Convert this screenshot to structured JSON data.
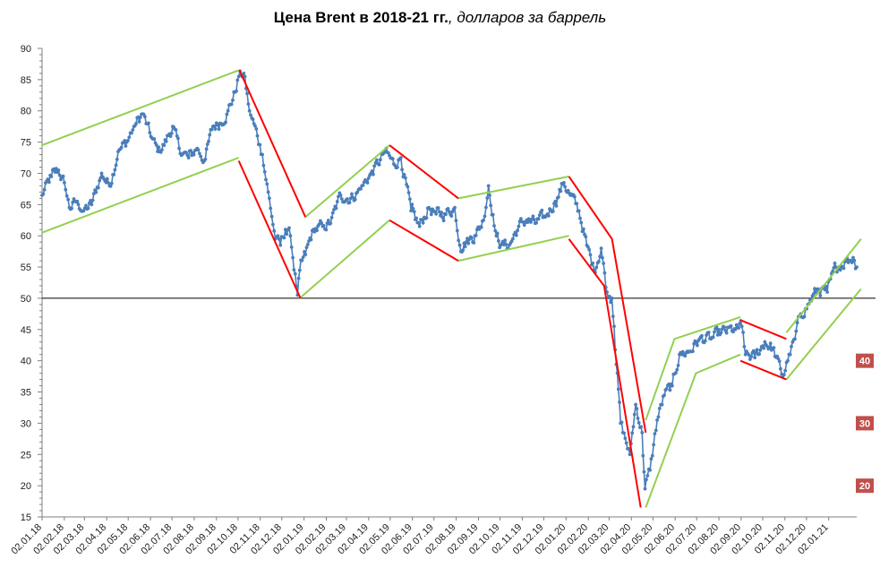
{
  "title": {
    "bold_part": "Цена Brent в 2018-21 гг.",
    "italic_part": ", долларов за баррель"
  },
  "colors": {
    "series": "#4a7ebb",
    "up_channel": "#92d050",
    "down_channel": "#ff0000",
    "reference_line": "#000000",
    "badge": "#c0504d"
  },
  "chart_data": {
    "type": "line",
    "title": "Цена Brent в 2018-21 гг., долларов за баррель",
    "xlabel": "",
    "ylabel": "",
    "ylim": [
      15,
      90
    ],
    "yticks": [
      15,
      20,
      25,
      30,
      35,
      40,
      45,
      50,
      55,
      60,
      65,
      70,
      75,
      80,
      85,
      90
    ],
    "x_range": [
      "2018-01-02",
      "2021-02-10"
    ],
    "x_tick_labels": [
      "02.01.18",
      "02.02.18",
      "02.03.18",
      "02.04.18",
      "02.05.18",
      "02.06.18",
      "02.07.18",
      "02.08.18",
      "02.09.18",
      "02.10.18",
      "02.11.18",
      "02.12.18",
      "02.01.19",
      "02.02.19",
      "02.03.19",
      "02.04.19",
      "02.05.19",
      "02.06.19",
      "02.07.19",
      "02.08.19",
      "02.09.19",
      "02.10.19",
      "02.11.19",
      "02.12.19",
      "02.01.20",
      "02.02.20",
      "02.03.20",
      "02.04.20",
      "02.05.20",
      "02.06.20",
      "02.07.20",
      "02.08.20",
      "02.09.20",
      "02.10.20",
      "02.11.20",
      "02.12.20",
      "02.01.21"
    ],
    "reference_line": 50,
    "grid": false,
    "series": [
      {
        "x": [
          "2018-01-02",
          "2018-01-15",
          "2018-01-25",
          "2018-02-02",
          "2018-02-09",
          "2018-02-20",
          "2018-03-01",
          "2018-03-12",
          "2018-03-26",
          "2018-04-06",
          "2018-04-18",
          "2018-04-30",
          "2018-05-10",
          "2018-05-22",
          "2018-06-01",
          "2018-06-12",
          "2018-06-21",
          "2018-07-03",
          "2018-07-12",
          "2018-07-25",
          "2018-08-06",
          "2018-08-16",
          "2018-08-28",
          "2018-09-07",
          "2018-09-18",
          "2018-09-28",
          "2018-10-03",
          "2018-10-10",
          "2018-10-18",
          "2018-10-29",
          "2018-11-05",
          "2018-11-13",
          "2018-11-23",
          "2018-11-30",
          "2018-12-07",
          "2018-12-14",
          "2018-12-24",
          "2018-12-27",
          "2019-01-04",
          "2019-01-15",
          "2019-01-28",
          "2019-02-08",
          "2019-02-22",
          "2019-03-08",
          "2019-03-22",
          "2019-04-05",
          "2019-04-15",
          "2019-04-25",
          "2019-05-07",
          "2019-05-17",
          "2019-05-31",
          "2019-06-12",
          "2019-06-25",
          "2019-07-05",
          "2019-07-17",
          "2019-07-31",
          "2019-08-07",
          "2019-08-16",
          "2019-08-28",
          "2019-09-09",
          "2019-09-16",
          "2019-09-27",
          "2019-10-03",
          "2019-10-15",
          "2019-10-28",
          "2019-11-08",
          "2019-11-20",
          "2019-12-04",
          "2019-12-18",
          "2019-12-30",
          "2020-01-08",
          "2020-01-20",
          "2020-01-31",
          "2020-02-10",
          "2020-02-20",
          "2020-02-28",
          "2020-03-06",
          "2020-03-09",
          "2020-03-18",
          "2020-03-31",
          "2020-04-08",
          "2020-04-17",
          "2020-04-21",
          "2020-04-28",
          "2020-05-08",
          "2020-05-18",
          "2020-05-29",
          "2020-06-08",
          "2020-06-22",
          "2020-07-06",
          "2020-07-22",
          "2020-08-05",
          "2020-08-25",
          "2020-09-03",
          "2020-09-08",
          "2020-09-21",
          "2020-10-05",
          "2020-10-16",
          "2020-10-30",
          "2020-11-06",
          "2020-11-16",
          "2020-11-24",
          "2020-12-04",
          "2020-12-18",
          "2020-12-31",
          "2021-01-12",
          "2021-01-26",
          "2021-02-05",
          "2021-02-10"
        ],
        "values": [
          66.5,
          69.5,
          70.5,
          68.5,
          64.5,
          65.5,
          64.0,
          65.0,
          70.0,
          68.0,
          73.5,
          75.0,
          77.5,
          79.5,
          76.5,
          73.5,
          74.5,
          77.5,
          74.0,
          72.5,
          74.0,
          72.0,
          77.5,
          78.0,
          80.0,
          83.0,
          85.5,
          86.0,
          80.0,
          76.0,
          73.0,
          67.0,
          59.5,
          58.5,
          61.0,
          60.0,
          50.5,
          54.5,
          57.0,
          61.0,
          61.5,
          62.0,
          66.5,
          66.0,
          67.5,
          70.0,
          71.5,
          73.5,
          71.5,
          72.5,
          64.0,
          61.5,
          64.5,
          63.5,
          63.5,
          64.5,
          58.5,
          59.0,
          60.0,
          62.5,
          68.0,
          60.0,
          58.5,
          58.5,
          61.5,
          62.5,
          62.0,
          63.0,
          65.5,
          68.5,
          66.5,
          64.0,
          58.5,
          54.5,
          58.0,
          51.0,
          50.0,
          45.5,
          30.0,
          25.0,
          33.0,
          28.5,
          19.5,
          22.5,
          30.5,
          34.5,
          36.0,
          41.0,
          41.5,
          43.5,
          43.5,
          44.5,
          45.0,
          45.5,
          41.0,
          40.5,
          43.0,
          42.0,
          37.5,
          40.0,
          43.5,
          47.5,
          49.0,
          51.5,
          51.0,
          55.0,
          56.0,
          56.5,
          55.0
        ]
      }
    ],
    "up_channels": [
      {
        "upper": [
          [
            "2018-01-02",
            74.5
          ],
          [
            "2018-10-03",
            86.5
          ]
        ],
        "lower": [
          [
            "2018-01-02",
            60.5
          ],
          [
            "2018-10-03",
            72.5
          ]
        ]
      },
      {
        "upper": [
          [
            "2019-01-04",
            63.0
          ],
          [
            "2019-05-01",
            74.5
          ]
        ],
        "lower": [
          [
            "2018-12-27",
            50.0
          ],
          [
            "2019-05-01",
            62.5
          ]
        ]
      },
      {
        "upper": [
          [
            "2019-08-05",
            66.0
          ],
          [
            "2020-01-06",
            69.5
          ]
        ],
        "lower": [
          [
            "2019-08-05",
            56.0
          ],
          [
            "2020-01-06",
            60.0
          ]
        ]
      },
      {
        "upper": [
          [
            "2020-04-22",
            30.5
          ],
          [
            "2020-06-01",
            43.5
          ],
          [
            "2020-09-01",
            47.0
          ]
        ],
        "lower": [
          [
            "2020-04-22",
            16.5
          ],
          [
            "2020-07-01",
            38.0
          ],
          [
            "2020-09-01",
            41.0
          ]
        ]
      },
      {
        "upper": [
          [
            "2020-11-04",
            44.5
          ],
          [
            "2021-02-16",
            59.5
          ]
        ],
        "lower": [
          [
            "2020-11-04",
            37.0
          ],
          [
            "2021-02-16",
            51.5
          ]
        ]
      }
    ],
    "down_channels": [
      {
        "upper": [
          [
            "2018-10-04",
            86.5
          ],
          [
            "2019-01-04",
            63.0
          ]
        ],
        "lower": [
          [
            "2018-10-03",
            72.0
          ],
          [
            "2018-12-28",
            50.0
          ]
        ]
      },
      {
        "upper": [
          [
            "2019-05-01",
            74.5
          ],
          [
            "2019-08-05",
            66.0
          ]
        ],
        "lower": [
          [
            "2019-05-01",
            62.5
          ],
          [
            "2019-08-05",
            56.0
          ]
        ]
      },
      {
        "upper": [
          [
            "2020-01-06",
            69.5
          ],
          [
            "2020-03-06",
            59.5
          ],
          [
            "2020-04-22",
            28.5
          ]
        ],
        "lower": [
          [
            "2020-01-06",
            59.5
          ],
          [
            "2020-02-24",
            52.0
          ],
          [
            "2020-04-15",
            16.5
          ]
        ]
      },
      {
        "upper": [
          [
            "2020-09-01",
            46.5
          ],
          [
            "2020-11-04",
            43.5
          ]
        ],
        "lower": [
          [
            "2020-09-01",
            40.0
          ],
          [
            "2020-11-04",
            37.0
          ]
        ]
      }
    ],
    "right_badges": [
      {
        "label": "40",
        "value": 40
      },
      {
        "label": "30",
        "value": 30
      },
      {
        "label": "20",
        "value": 20
      }
    ]
  }
}
